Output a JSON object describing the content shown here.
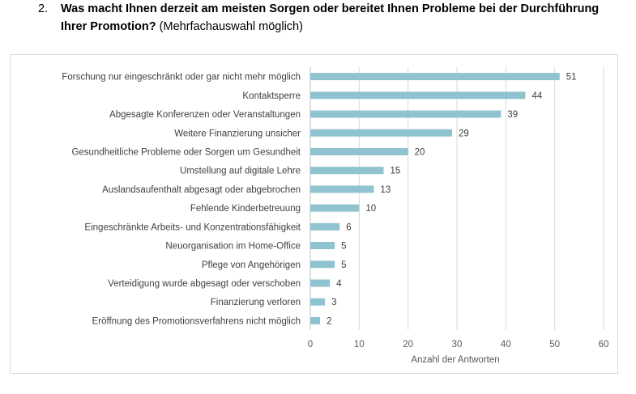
{
  "question": {
    "number": "2.",
    "title_bold": "Was macht Ihnen derzeit am meisten Sorgen oder bereitet Ihnen Probleme bei der Durchführung Ihrer Promotion?",
    "title_note": "(Mehrfachauswahl möglich)"
  },
  "colors": {
    "bar": "#8fc3cf",
    "gridline": "#d9d9d9",
    "axis": "#bfbfbf"
  },
  "chart_data": {
    "type": "bar",
    "orientation": "horizontal",
    "categories": [
      "Forschung nur eingeschränkt oder gar nicht mehr möglich",
      "Kontaktsperre",
      "Abgesagte Konferenzen oder Veranstaltungen",
      "Weitere Finanzierung unsicher",
      "Gesundheitliche Probleme oder Sorgen um Gesundheit",
      "Umstellung auf digitale Lehre",
      "Auslandsaufenthalt abgesagt oder abgebrochen",
      "Fehlende Kinderbetreuung",
      "Eingeschränkte Arbeits- und Konzentrationsfähigkeit",
      "Neuorganisation im Home-Office",
      "Pflege von Angehörigen",
      "Verteidigung wurde abgesagt oder verschoben",
      "Finanzierung verloren",
      "Eröffnung des Promotionsverfahrens nicht möglich"
    ],
    "values": [
      51,
      44,
      39,
      29,
      20,
      15,
      13,
      10,
      6,
      5,
      5,
      4,
      3,
      2
    ],
    "xlabel": "Anzahl der Antworten",
    "xlim": [
      0,
      60
    ],
    "xticks": [
      0,
      10,
      20,
      30,
      40,
      50,
      60
    ],
    "grid": true,
    "data_labels": true
  }
}
